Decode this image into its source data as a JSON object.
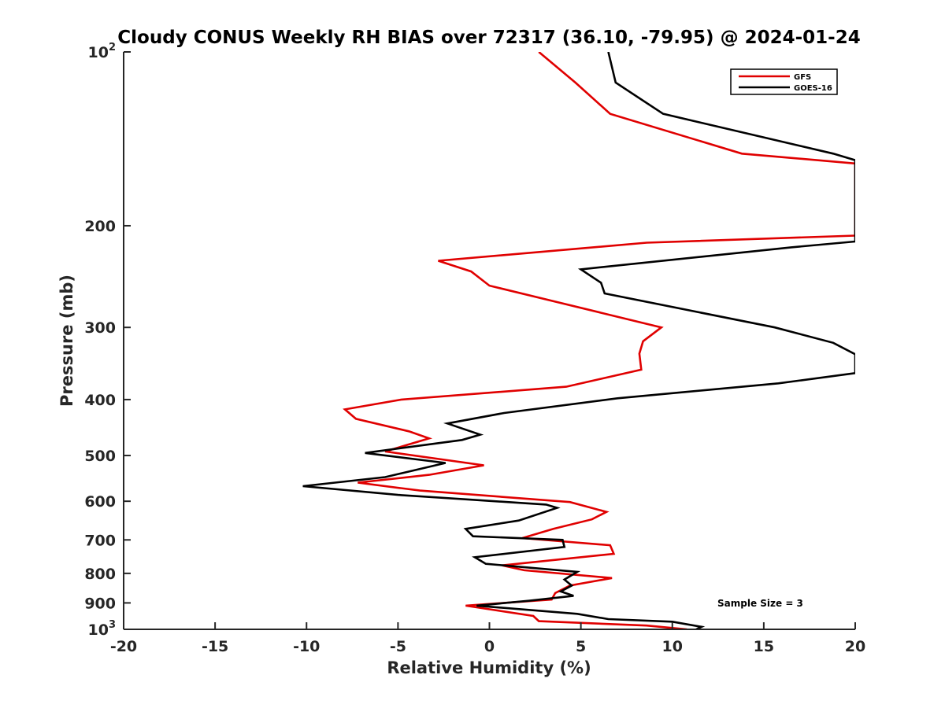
{
  "chart_data": {
    "type": "line",
    "title": "Cloudy CONUS Weekly RH BIAS over 72317 (36.10, -79.95) @ 2024-01-24",
    "xlabel": "Relative Humidity (%)",
    "ylabel": "Pressure (mb)",
    "xlim": [
      -20,
      20
    ],
    "ylim": [
      100,
      1000
    ],
    "yscale": "log",
    "y_reversed": true,
    "x_ticks": [
      "-20",
      "-15",
      "-10",
      "-5",
      "0",
      "5",
      "10",
      "15",
      "20"
    ],
    "y_ticks": [
      {
        "value": 100,
        "base": "10",
        "exp": "2"
      },
      {
        "value": 200,
        "base": "200",
        "exp": ""
      },
      {
        "value": 300,
        "base": "300",
        "exp": ""
      },
      {
        "value": 400,
        "base": "400",
        "exp": ""
      },
      {
        "value": 500,
        "base": "500",
        "exp": ""
      },
      {
        "value": 600,
        "base": "600",
        "exp": ""
      },
      {
        "value": 700,
        "base": "700",
        "exp": ""
      },
      {
        "value": 800,
        "base": "800",
        "exp": ""
      },
      {
        "value": 900,
        "base": "900",
        "exp": ""
      },
      {
        "value": 1000,
        "base": "10",
        "exp": "3"
      }
    ],
    "grid": false,
    "legend_position": "top-right",
    "annotation": "Sample Size = 3",
    "series": [
      {
        "name": "GFS",
        "color": "#e00000",
        "points": [
          [
            2.7,
            100
          ],
          [
            4.7,
            113
          ],
          [
            6.6,
            128
          ],
          [
            13.8,
            150
          ],
          [
            20,
            156
          ],
          [
            20.0,
            208
          ],
          [
            8.6,
            214
          ],
          [
            -2.8,
            230
          ],
          [
            -1.0,
            240
          ],
          [
            0.0,
            254
          ],
          [
            9.4,
            300
          ],
          [
            8.4,
            317
          ],
          [
            8.2,
            333
          ],
          [
            8.3,
            355
          ],
          [
            4.2,
            380
          ],
          [
            -4.8,
            400
          ],
          [
            -7.9,
            416
          ],
          [
            -7.3,
            432
          ],
          [
            -4.4,
            454
          ],
          [
            -3.3,
            467
          ],
          [
            -5.7,
            492
          ],
          [
            -0.3,
            520
          ],
          [
            -3.3,
            540
          ],
          [
            -7.2,
            557
          ],
          [
            -3.8,
            575
          ],
          [
            4.4,
            602
          ],
          [
            6.4,
            626
          ],
          [
            5.6,
            645
          ],
          [
            3.5,
            670
          ],
          [
            1.8,
            695
          ],
          [
            6.6,
            715
          ],
          [
            6.8,
            740
          ],
          [
            0.7,
            775
          ],
          [
            1.9,
            790
          ],
          [
            6.7,
            815
          ],
          [
            4.4,
            840
          ],
          [
            3.6,
            865
          ],
          [
            3.4,
            888
          ],
          [
            -1.3,
            910
          ],
          [
            2.4,
            948
          ],
          [
            2.7,
            968
          ],
          [
            8.6,
            985
          ],
          [
            10.8,
            1000
          ]
        ]
      },
      {
        "name": "GOES-16",
        "color": "#000000",
        "points": [
          [
            6.5,
            100
          ],
          [
            6.9,
            113
          ],
          [
            9.5,
            128
          ],
          [
            18.8,
            150
          ],
          [
            20,
            154
          ],
          [
            20.0,
            213
          ],
          [
            16.5,
            218
          ],
          [
            5.0,
            238
          ],
          [
            6.1,
            251
          ],
          [
            6.3,
            262
          ],
          [
            15.6,
            300
          ],
          [
            18.8,
            319
          ],
          [
            20,
            334
          ],
          [
            20.0,
            360
          ],
          [
            15.8,
            375
          ],
          [
            7.0,
            398
          ],
          [
            0.8,
            422
          ],
          [
            -2.3,
            440
          ],
          [
            -0.5,
            460
          ],
          [
            -1.5,
            470
          ],
          [
            -6.8,
            495
          ],
          [
            -2.4,
            515
          ],
          [
            -5.7,
            545
          ],
          [
            -10.2,
            565
          ],
          [
            -5.0,
            585
          ],
          [
            3.1,
            608
          ],
          [
            3.7,
            616
          ],
          [
            1.6,
            648
          ],
          [
            -1.3,
            670
          ],
          [
            -0.9,
            690
          ],
          [
            4.0,
            700
          ],
          [
            4.1,
            720
          ],
          [
            -0.8,
            750
          ],
          [
            -0.2,
            770
          ],
          [
            4.8,
            795
          ],
          [
            4.1,
            820
          ],
          [
            4.5,
            840
          ],
          [
            3.9,
            860
          ],
          [
            4.6,
            875
          ],
          [
            2.2,
            892
          ],
          [
            -0.7,
            910
          ],
          [
            4.8,
            940
          ],
          [
            6.5,
            960
          ],
          [
            10.0,
            970
          ],
          [
            11.6,
            990
          ],
          [
            11.3,
            1000
          ]
        ]
      }
    ]
  }
}
